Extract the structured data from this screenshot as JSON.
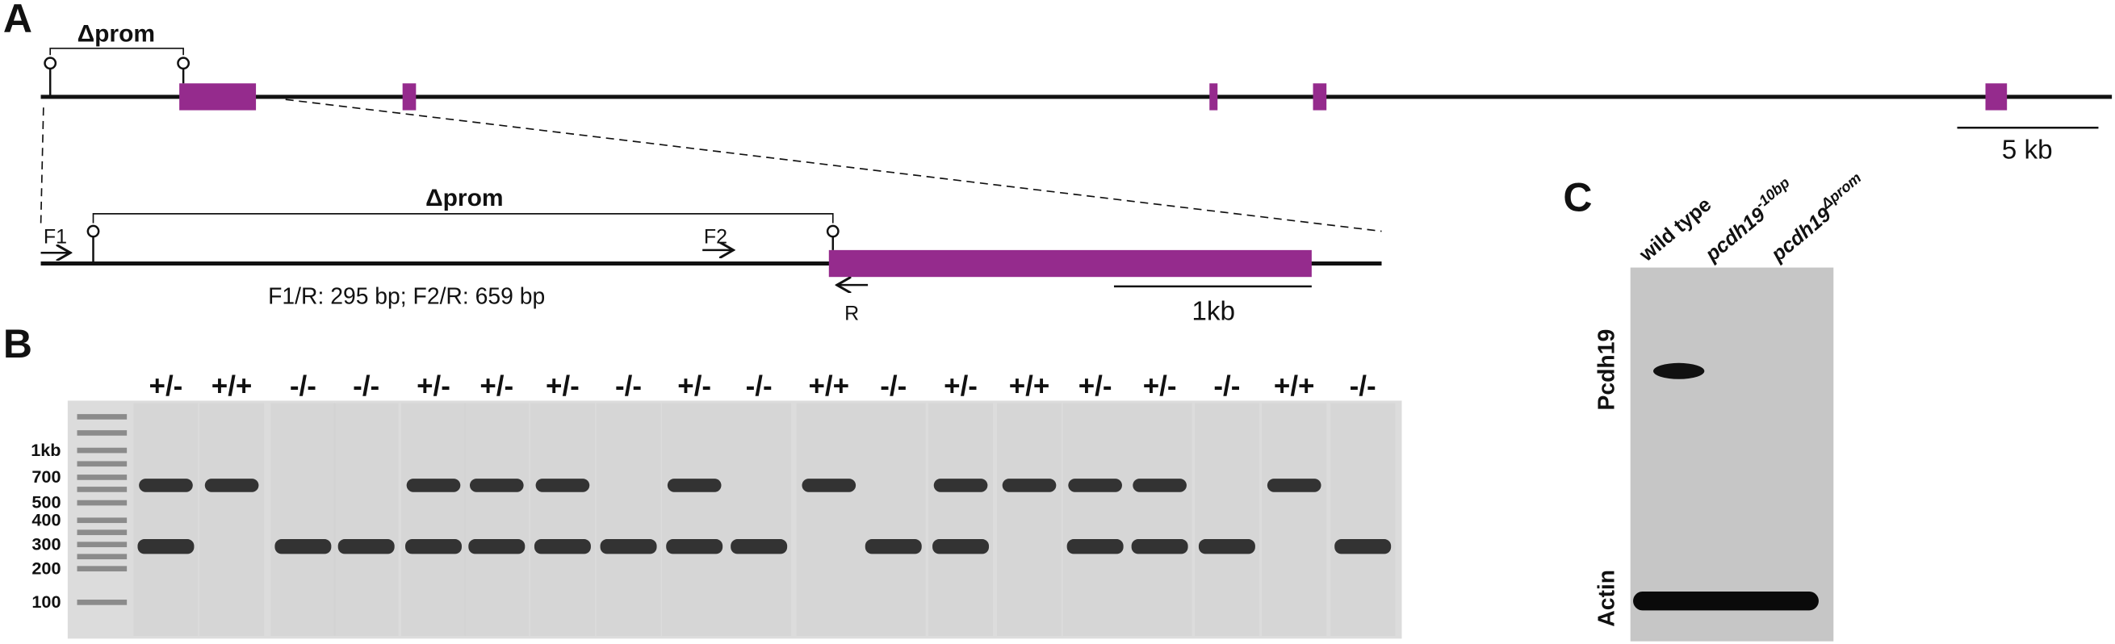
{
  "panel_a": {
    "label": "A",
    "deletion_top": "Δprom",
    "deletion_zoom": "Δprom",
    "primer_f1": "F1",
    "primer_f2": "F2",
    "primer_r": "R",
    "product_sizes": "F1/R: 295 bp; F2/R: 659 bp",
    "scale_zoom": "1kb",
    "scale_gene": "5 kb"
  },
  "panel_b": {
    "label": "B",
    "ladder": [
      "1kb",
      "700",
      "500",
      "400",
      "300",
      "200",
      "100"
    ],
    "genotypes": [
      "+/-",
      "+/+",
      "-/-",
      "-/-",
      "+/-",
      "+/-",
      "+/-",
      "-/-",
      "+/-",
      "-/-",
      "+/+",
      "-/-",
      "+/-",
      "+/+",
      "+/-",
      "+/-",
      "-/-",
      "+/+",
      "-/-"
    ]
  },
  "panel_c": {
    "label": "C",
    "lanes": [
      {
        "base": "wild type"
      },
      {
        "base": "pcdh19",
        "sup": "-10bp"
      },
      {
        "base": "pcdh19",
        "sup": "Δprom"
      }
    ],
    "rows": [
      "Pcdh19",
      "Actin"
    ]
  }
}
